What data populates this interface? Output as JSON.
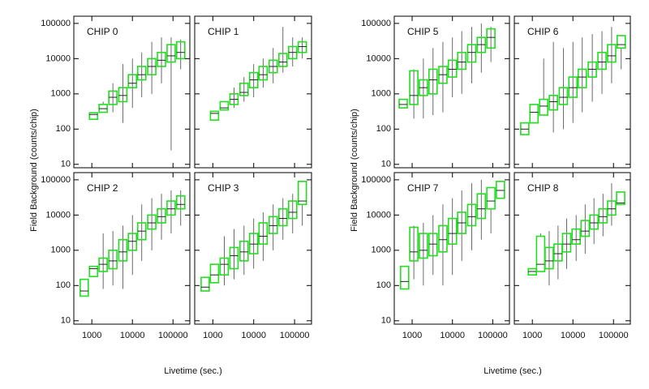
{
  "chart_data": [
    {
      "type": "box",
      "title": "CHIP 0",
      "ylabel": "Field Background (counts/chip)",
      "log_x": true,
      "log_y": true,
      "color": "#22dd22",
      "x": [
        1100,
        1900,
        3300,
        5800,
        10000,
        17000,
        30000,
        52000,
        90000,
        155000
      ],
      "whislo": [
        null,
        null,
        300,
        150,
        400,
        800,
        1000,
        2000,
        25,
        5000
      ],
      "q1": [
        190,
        300,
        500,
        600,
        1500,
        2500,
        3500,
        6000,
        8000,
        10000
      ],
      "med": [
        260,
        380,
        800,
        900,
        2000,
        3500,
        6000,
        9000,
        12000,
        15000
      ],
      "q3": [
        290,
        500,
        1200,
        1500,
        3500,
        6000,
        10000,
        15000,
        25000,
        30000
      ],
      "whishi": [
        null,
        600,
        2000,
        7000,
        10000,
        15000,
        30000,
        40000,
        40000,
        35000
      ],
      "xlim": [
        360,
        260000
      ],
      "ylim": [
        8,
        160000
      ],
      "xticks": [
        1000,
        10000,
        100000
      ],
      "yticks": [
        10,
        100,
        1000,
        10000,
        100000
      ]
    },
    {
      "type": "box",
      "title": "CHIP 1",
      "log_x": true,
      "log_y": true,
      "color": "#22dd22",
      "x": [
        1100,
        1900,
        3300,
        5800,
        10000,
        17000,
        30000,
        52000,
        90000,
        155000
      ],
      "whislo": [
        null,
        null,
        400,
        600,
        800,
        1500,
        2000,
        4000,
        6000,
        10000
      ],
      "q1": [
        180,
        350,
        500,
        900,
        1500,
        2500,
        4000,
        6000,
        10000,
        15000
      ],
      "med": [
        280,
        400,
        700,
        1100,
        2500,
        3500,
        6000,
        8000,
        15000,
        22000
      ],
      "q3": [
        320,
        600,
        1000,
        2000,
        4000,
        6000,
        9000,
        14000,
        22000,
        30000
      ],
      "whishi": [
        null,
        null,
        1500,
        3000,
        7000,
        10000,
        20000,
        80000,
        40000,
        40000
      ],
      "xlim": [
        360,
        260000
      ],
      "ylim": [
        8,
        160000
      ],
      "xticks": [
        1000,
        10000,
        100000
      ],
      "yticks": [
        10,
        100,
        1000,
        10000,
        100000
      ]
    },
    {
      "type": "box",
      "title": "CHIP 2",
      "xlabel": "Livetime (sec.)",
      "log_x": true,
      "log_y": true,
      "color": "#22dd22",
      "x": [
        650,
        1100,
        1900,
        3300,
        5800,
        10000,
        17000,
        30000,
        52000,
        90000,
        155000
      ],
      "whislo": [
        null,
        null,
        80,
        100,
        80,
        200,
        500,
        1000,
        2000,
        3000,
        5000
      ],
      "q1": [
        50,
        180,
        250,
        300,
        500,
        1000,
        2000,
        4000,
        6000,
        10000,
        15000
      ],
      "med": [
        70,
        300,
        400,
        500,
        900,
        1800,
        3500,
        6000,
        9000,
        15000,
        20000
      ],
      "q3": [
        150,
        350,
        600,
        1000,
        2000,
        3000,
        6000,
        10000,
        15000,
        25000,
        35000
      ],
      "whishi": [
        null,
        null,
        3000,
        3500,
        5000,
        10000,
        20000,
        30000,
        40000,
        50000,
        50000
      ],
      "xlim": [
        360,
        260000
      ],
      "ylim": [
        8,
        160000
      ],
      "xticks": [
        1000,
        10000,
        100000
      ],
      "yticks": [
        10,
        100,
        1000,
        10000,
        100000
      ]
    },
    {
      "type": "box",
      "title": "CHIP 3",
      "log_x": true,
      "log_y": true,
      "color": "#22dd22",
      "x": [
        650,
        1100,
        1900,
        3300,
        5800,
        10000,
        17000,
        30000,
        52000,
        90000,
        155000
      ],
      "whislo": [
        null,
        null,
        100,
        150,
        200,
        300,
        500,
        1000,
        2000,
        3000,
        5000
      ],
      "q1": [
        70,
        120,
        200,
        300,
        500,
        800,
        1500,
        3000,
        5000,
        8000,
        20000
      ],
      "med": [
        90,
        200,
        400,
        700,
        900,
        1500,
        2500,
        5000,
        8000,
        12000,
        25000
      ],
      "q3": [
        170,
        400,
        600,
        1200,
        1800,
        3000,
        6000,
        9000,
        15000,
        25000,
        90000
      ],
      "whishi": [
        null,
        null,
        2500,
        4000,
        5000,
        8000,
        12000,
        20000,
        30000,
        40000,
        null
      ],
      "xlim": [
        360,
        260000
      ],
      "ylim": [
        8,
        160000
      ],
      "xticks": [
        1000,
        10000,
        100000
      ],
      "yticks": [
        10,
        100,
        1000,
        10000,
        100000
      ]
    },
    {
      "type": "box",
      "title": "CHIP 5",
      "ylabel": "Field Background (counts/chip)",
      "log_x": true,
      "log_y": true,
      "color": "#22dd22",
      "x": [
        600,
        1100,
        1900,
        3300,
        5800,
        10000,
        17000,
        30000,
        52000,
        90000
      ],
      "whislo": [
        null,
        200,
        200,
        250,
        300,
        800,
        1000,
        2000,
        4000,
        8000
      ],
      "q1": [
        400,
        500,
        900,
        1000,
        2000,
        3000,
        5000,
        8000,
        15000,
        20000
      ],
      "med": [
        500,
        900,
        1500,
        2500,
        3500,
        5000,
        8000,
        15000,
        25000,
        40000
      ],
      "q3": [
        700,
        4500,
        2500,
        5000,
        6000,
        9000,
        15000,
        25000,
        40000,
        70000
      ],
      "whishi": [
        null,
        5000,
        10000,
        20000,
        30000,
        40000,
        60000,
        80000,
        100000,
        80000
      ],
      "xlim": [
        360,
        260000
      ],
      "ylim": [
        8,
        160000
      ],
      "xticks": [
        1000,
        10000,
        100000
      ],
      "yticks": [
        10,
        100,
        1000,
        10000,
        100000
      ]
    },
    {
      "type": "box",
      "title": "CHIP 6",
      "log_x": true,
      "log_y": true,
      "color": "#22dd22",
      "x": [
        650,
        1100,
        1900,
        3300,
        5800,
        10000,
        17000,
        30000,
        52000,
        90000,
        155000
      ],
      "whislo": [
        null,
        null,
        null,
        80,
        100,
        150,
        300,
        600,
        1000,
        2000,
        5000
      ],
      "q1": [
        70,
        150,
        250,
        350,
        500,
        800,
        1500,
        3000,
        5000,
        8000,
        20000
      ],
      "med": [
        100,
        300,
        450,
        600,
        800,
        1500,
        3000,
        5000,
        8000,
        12000,
        25000
      ],
      "q3": [
        150,
        500,
        700,
        900,
        1500,
        3000,
        5000,
        8000,
        15000,
        25000,
        45000
      ],
      "whishi": [
        null,
        null,
        10000,
        30000,
        20000,
        30000,
        40000,
        50000,
        60000,
        80000,
        null
      ],
      "xlim": [
        360,
        260000
      ],
      "ylim": [
        8,
        160000
      ],
      "xticks": [
        1000,
        10000,
        100000
      ],
      "yticks": [
        10,
        100,
        1000,
        10000,
        100000
      ]
    },
    {
      "type": "box",
      "title": "CHIP 7",
      "xlabel": "Livetime (sec.)",
      "log_x": true,
      "log_y": true,
      "color": "#22dd22",
      "x": [
        650,
        1100,
        1900,
        3300,
        5800,
        10000,
        17000,
        30000,
        52000,
        90000,
        155000
      ],
      "whislo": [
        null,
        150,
        100,
        200,
        100,
        200,
        500,
        1000,
        2000,
        3000,
        null
      ],
      "q1": [
        80,
        500,
        600,
        700,
        900,
        1500,
        3000,
        5000,
        8000,
        15000,
        30000
      ],
      "med": [
        130,
        900,
        1000,
        1500,
        2000,
        3000,
        6000,
        9000,
        15000,
        25000,
        50000
      ],
      "q3": [
        350,
        4500,
        3000,
        3000,
        5000,
        8000,
        12000,
        20000,
        40000,
        60000,
        90000
      ],
      "whishi": [
        null,
        5000,
        6000,
        10000,
        20000,
        30000,
        50000,
        80000,
        100000,
        null,
        null
      ],
      "xlim": [
        360,
        260000
      ],
      "ylim": [
        8,
        160000
      ],
      "xticks": [
        1000,
        10000,
        100000
      ],
      "yticks": [
        10,
        100,
        1000,
        10000,
        100000
      ]
    },
    {
      "type": "box",
      "title": "CHIP 8",
      "log_x": true,
      "log_y": true,
      "color": "#22dd22",
      "x": [
        1000,
        1600,
        2600,
        4300,
        7000,
        12000,
        20000,
        33000,
        55000,
        90000,
        150000
      ],
      "whislo": [
        null,
        null,
        100,
        150,
        300,
        500,
        800,
        1500,
        2500,
        5000,
        null
      ],
      "q1": [
        200,
        250,
        300,
        500,
        900,
        1500,
        2500,
        4000,
        6000,
        10000,
        20000
      ],
      "med": [
        250,
        400,
        500,
        800,
        1500,
        2000,
        3500,
        6000,
        9000,
        15000,
        22000
      ],
      "q3": [
        300,
        2500,
        1200,
        1500,
        3000,
        4000,
        7000,
        10000,
        15000,
        25000,
        45000
      ],
      "whishi": [
        null,
        3000,
        3500,
        5000,
        8000,
        10000,
        20000,
        30000,
        40000,
        80000,
        null
      ],
      "xlim": [
        360,
        260000
      ],
      "ylim": [
        8,
        160000
      ],
      "xticks": [
        1000,
        10000,
        100000
      ],
      "yticks": [
        10,
        100,
        1000,
        10000,
        100000
      ]
    }
  ]
}
